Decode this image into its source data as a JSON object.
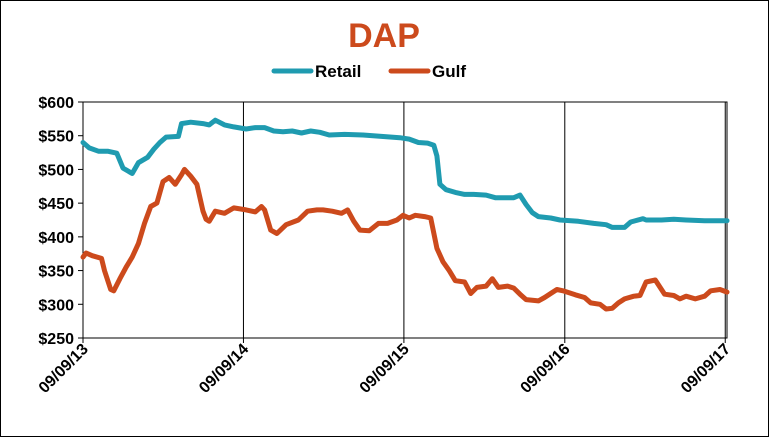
{
  "chart_data": {
    "type": "line",
    "title": "DAP",
    "xlabel": "",
    "ylabel": "",
    "x_axis": "date",
    "xlim": [
      "2013-09-09",
      "2017-09-13"
    ],
    "ylim": [
      250,
      600
    ],
    "y_ticks": [
      250,
      300,
      350,
      400,
      450,
      500,
      550,
      600
    ],
    "y_tick_labels": [
      "$250",
      "$300",
      "$350",
      "$400",
      "$450",
      "$500",
      "$550",
      "$600"
    ],
    "x_tick_labels": [
      "09/09/13",
      "09/09/14",
      "09/09/15",
      "09/09/16",
      "09/09/17"
    ],
    "x_ticks": [
      "2013-09-09",
      "2014-09-09",
      "2015-09-09",
      "2016-09-09",
      "2017-09-09"
    ],
    "grid": "vertical lines at x ticks",
    "legend_position": "top-center",
    "colors": {
      "Retail": "#1f9bb0",
      "Gulf": "#cc4a1c",
      "title": "#cc4a1c"
    },
    "series": [
      {
        "name": "Retail",
        "points": [
          [
            "2013-09-09",
            540
          ],
          [
            "2013-09-23",
            532
          ],
          [
            "2013-10-14",
            527
          ],
          [
            "2013-11-04",
            527
          ],
          [
            "2013-11-25",
            524
          ],
          [
            "2013-12-09",
            502
          ],
          [
            "2013-12-30",
            494
          ],
          [
            "2014-01-13",
            510
          ],
          [
            "2014-02-03",
            518
          ],
          [
            "2014-02-17",
            530
          ],
          [
            "2014-03-03",
            540
          ],
          [
            "2014-03-17",
            548
          ],
          [
            "2014-04-14",
            549
          ],
          [
            "2014-04-21",
            568
          ],
          [
            "2014-05-12",
            570
          ],
          [
            "2014-06-09",
            568
          ],
          [
            "2014-06-23",
            566
          ],
          [
            "2014-07-07",
            573
          ],
          [
            "2014-07-28",
            566
          ],
          [
            "2014-08-18",
            563
          ],
          [
            "2014-09-15",
            560
          ],
          [
            "2014-10-06",
            562
          ],
          [
            "2014-10-27",
            562
          ],
          [
            "2014-11-17",
            557
          ],
          [
            "2014-12-08",
            556
          ],
          [
            "2014-12-29",
            557
          ],
          [
            "2015-01-19",
            554
          ],
          [
            "2015-02-09",
            557
          ],
          [
            "2015-03-02",
            555
          ],
          [
            "2015-03-23",
            551
          ],
          [
            "2015-04-27",
            552
          ],
          [
            "2015-06-08",
            551
          ],
          [
            "2015-07-20",
            549
          ],
          [
            "2015-08-31",
            547
          ],
          [
            "2015-09-21",
            545
          ],
          [
            "2015-10-12",
            540
          ],
          [
            "2015-11-02",
            539
          ],
          [
            "2015-11-16",
            536
          ],
          [
            "2015-11-23",
            520
          ],
          [
            "2015-11-30",
            478
          ],
          [
            "2015-12-14",
            470
          ],
          [
            "2016-01-04",
            466
          ],
          [
            "2016-01-25",
            463
          ],
          [
            "2016-02-15",
            463
          ],
          [
            "2016-03-14",
            462
          ],
          [
            "2016-04-04",
            458
          ],
          [
            "2016-04-25",
            458
          ],
          [
            "2016-05-16",
            458
          ],
          [
            "2016-05-30",
            462
          ],
          [
            "2016-06-13",
            448
          ],
          [
            "2016-06-27",
            436
          ],
          [
            "2016-07-11",
            430
          ],
          [
            "2016-08-08",
            428
          ],
          [
            "2016-08-29",
            425
          ],
          [
            "2016-10-10",
            423
          ],
          [
            "2016-11-14",
            420
          ],
          [
            "2016-12-12",
            418
          ],
          [
            "2016-12-26",
            414
          ],
          [
            "2017-01-23",
            414
          ],
          [
            "2017-02-06",
            422
          ],
          [
            "2017-03-06",
            427
          ],
          [
            "2017-03-13",
            425
          ],
          [
            "2017-04-17",
            425
          ],
          [
            "2017-05-15",
            426
          ],
          [
            "2017-06-12",
            425
          ],
          [
            "2017-07-24",
            424
          ],
          [
            "2017-09-13",
            424
          ]
        ]
      },
      {
        "name": "Gulf",
        "points": [
          [
            "2013-09-09",
            370
          ],
          [
            "2013-09-16",
            376
          ],
          [
            "2013-09-30",
            372
          ],
          [
            "2013-10-21",
            368
          ],
          [
            "2013-10-28",
            350
          ],
          [
            "2013-11-11",
            322
          ],
          [
            "2013-11-18",
            320
          ],
          [
            "2013-12-02",
            338
          ],
          [
            "2013-12-16",
            355
          ],
          [
            "2013-12-30",
            370
          ],
          [
            "2014-01-13",
            390
          ],
          [
            "2014-01-27",
            420
          ],
          [
            "2014-02-10",
            445
          ],
          [
            "2014-02-24",
            450
          ],
          [
            "2014-03-10",
            482
          ],
          [
            "2014-03-24",
            488
          ],
          [
            "2014-04-07",
            478
          ],
          [
            "2014-04-21",
            492
          ],
          [
            "2014-04-28",
            500
          ],
          [
            "2014-05-12",
            490
          ],
          [
            "2014-05-26",
            478
          ],
          [
            "2014-06-09",
            438
          ],
          [
            "2014-06-16",
            426
          ],
          [
            "2014-06-23",
            423
          ],
          [
            "2014-07-07",
            438
          ],
          [
            "2014-07-28",
            435
          ],
          [
            "2014-08-18",
            443
          ],
          [
            "2014-09-15",
            440
          ],
          [
            "2014-10-06",
            437
          ],
          [
            "2014-10-20",
            445
          ],
          [
            "2014-10-27",
            440
          ],
          [
            "2014-11-10",
            410
          ],
          [
            "2014-11-24",
            405
          ],
          [
            "2014-12-15",
            418
          ],
          [
            "2015-01-12",
            425
          ],
          [
            "2015-02-02",
            438
          ],
          [
            "2015-02-23",
            440
          ],
          [
            "2015-03-09",
            440
          ],
          [
            "2015-03-30",
            438
          ],
          [
            "2015-04-20",
            435
          ],
          [
            "2015-05-04",
            440
          ],
          [
            "2015-05-18",
            423
          ],
          [
            "2015-06-01",
            410
          ],
          [
            "2015-06-22",
            409
          ],
          [
            "2015-07-13",
            420
          ],
          [
            "2015-08-03",
            420
          ],
          [
            "2015-08-24",
            425
          ],
          [
            "2015-09-07",
            432
          ],
          [
            "2015-09-21",
            428
          ],
          [
            "2015-10-05",
            432
          ],
          [
            "2015-10-26",
            430
          ],
          [
            "2015-11-09",
            428
          ],
          [
            "2015-11-23",
            383
          ],
          [
            "2015-12-07",
            363
          ],
          [
            "2015-12-21",
            350
          ],
          [
            "2016-01-04",
            335
          ],
          [
            "2016-01-25",
            333
          ],
          [
            "2016-02-08",
            316
          ],
          [
            "2016-02-22",
            325
          ],
          [
            "2016-03-14",
            327
          ],
          [
            "2016-03-28",
            338
          ],
          [
            "2016-04-11",
            325
          ],
          [
            "2016-05-02",
            327
          ],
          [
            "2016-05-16",
            324
          ],
          [
            "2016-05-30",
            315
          ],
          [
            "2016-06-13",
            307
          ],
          [
            "2016-06-27",
            306
          ],
          [
            "2016-07-11",
            305
          ],
          [
            "2016-07-25",
            310
          ],
          [
            "2016-08-08",
            316
          ],
          [
            "2016-08-22",
            322
          ],
          [
            "2016-09-05",
            320
          ],
          [
            "2016-10-03",
            314
          ],
          [
            "2016-10-24",
            310
          ],
          [
            "2016-11-07",
            302
          ],
          [
            "2016-11-28",
            300
          ],
          [
            "2016-12-12",
            293
          ],
          [
            "2016-12-26",
            294
          ],
          [
            "2017-01-09",
            302
          ],
          [
            "2017-01-23",
            308
          ],
          [
            "2017-02-13",
            312
          ],
          [
            "2017-02-27",
            313
          ],
          [
            "2017-03-13",
            333
          ],
          [
            "2017-04-03",
            336
          ],
          [
            "2017-04-24",
            315
          ],
          [
            "2017-05-15",
            313
          ],
          [
            "2017-05-29",
            308
          ],
          [
            "2017-06-12",
            312
          ],
          [
            "2017-07-03",
            308
          ],
          [
            "2017-07-24",
            312
          ],
          [
            "2017-08-07",
            320
          ],
          [
            "2017-08-28",
            322
          ],
          [
            "2017-09-13",
            318
          ]
        ]
      }
    ]
  }
}
